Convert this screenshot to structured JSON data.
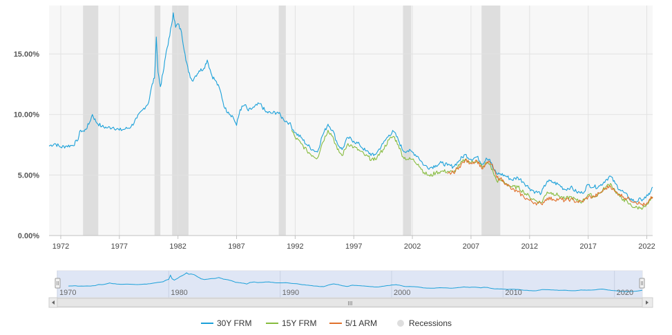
{
  "colors": {
    "frm30": "#1aa0d9",
    "frm15": "#86bb3d",
    "arm51": "#e0702a",
    "recession": "#dedede",
    "plot_bg": "#f7f7f7",
    "grid": "#e2e2e2",
    "navigator_fill": "#d9e2f3"
  },
  "chart_data": {
    "type": "line",
    "title": "",
    "xlabel": "",
    "ylabel": "",
    "xlim": [
      1971.0,
      2022.5
    ],
    "ylim": [
      0,
      19
    ],
    "y_ticks": [
      0,
      5,
      10,
      15
    ],
    "y_tick_labels": [
      "0.00%",
      "5.00%",
      "10.00%",
      "15.00%"
    ],
    "x_ticks": [
      1972,
      1977,
      1982,
      1987,
      1992,
      1997,
      2002,
      2007,
      2012,
      2017,
      2022
    ],
    "x_tick_labels": [
      "1972",
      "1977",
      "1982",
      "1987",
      "1992",
      "1997",
      "2002",
      "2007",
      "2012",
      "2017",
      "2022"
    ],
    "navigator": {
      "xlim": [
        1970,
        2022.5
      ],
      "ticks": [
        1970,
        1980,
        1990,
        2000,
        2010,
        2020
      ],
      "tick_labels": [
        "1970",
        "1980",
        "1990",
        "2000",
        "2010",
        "2020"
      ],
      "scroll_label": "III"
    },
    "recessions": [
      [
        1973.9,
        1975.2
      ],
      [
        1980.0,
        1980.5
      ],
      [
        1981.5,
        1982.9
      ],
      [
        1990.6,
        1991.2
      ],
      [
        2001.2,
        2001.9
      ],
      [
        2007.9,
        2009.5
      ]
    ],
    "series": [
      {
        "name": "30Y FRM",
        "color_key": "frm30",
        "x": [
          1971.0,
          1971.5,
          1972.0,
          1972.5,
          1973.0,
          1973.4,
          1973.7,
          1974.0,
          1974.4,
          1974.7,
          1975.0,
          1975.5,
          1976.0,
          1976.5,
          1977.0,
          1977.5,
          1978.0,
          1978.5,
          1979.0,
          1979.5,
          1979.8,
          1980.0,
          1980.15,
          1980.3,
          1980.5,
          1980.8,
          1981.0,
          1981.3,
          1981.6,
          1981.8,
          1982.0,
          1982.3,
          1982.6,
          1982.9,
          1983.2,
          1983.5,
          1983.8,
          1984.2,
          1984.5,
          1984.9,
          1985.2,
          1985.6,
          1986.0,
          1986.3,
          1986.7,
          1987.0,
          1987.3,
          1987.7,
          1988.0,
          1988.5,
          1989.0,
          1989.5,
          1990.0,
          1990.5,
          1991.0,
          1991.5,
          1992.0,
          1992.5,
          1993.0,
          1993.5,
          1993.9,
          1994.3,
          1994.8,
          1995.2,
          1995.6,
          1996.0,
          1996.5,
          1997.0,
          1997.5,
          1998.0,
          1998.7,
          1999.0,
          1999.5,
          2000.0,
          2000.4,
          2000.8,
          2001.2,
          2001.6,
          2002.0,
          2002.5,
          2003.0,
          2003.5,
          2004.0,
          2004.5,
          2005.0,
          2005.5,
          2006.0,
          2006.5,
          2007.0,
          2007.5,
          2008.0,
          2008.3,
          2008.6,
          2008.9,
          2009.2,
          2009.5,
          2010.0,
          2010.5,
          2011.0,
          2011.5,
          2012.0,
          2012.5,
          2013.0,
          2013.5,
          2014.0,
          2014.5,
          2015.0,
          2015.5,
          2016.0,
          2016.5,
          2017.0,
          2017.5,
          2018.0,
          2018.5,
          2018.9,
          2019.3,
          2019.7,
          2020.0,
          2020.5,
          2021.0,
          2021.5,
          2021.9,
          2022.1,
          2022.3,
          2022.5
        ],
        "y": [
          7.4,
          7.6,
          7.3,
          7.4,
          7.45,
          7.8,
          8.7,
          8.6,
          9.2,
          10.0,
          9.4,
          9.0,
          8.9,
          8.95,
          8.7,
          8.8,
          9.0,
          9.7,
          10.4,
          11.0,
          12.5,
          13.0,
          16.4,
          13.5,
          12.3,
          13.8,
          15.2,
          16.5,
          18.4,
          17.2,
          17.5,
          16.8,
          15.0,
          13.5,
          12.8,
          13.2,
          13.6,
          13.8,
          14.5,
          13.2,
          12.8,
          12.0,
          10.5,
          10.2,
          9.8,
          9.1,
          10.4,
          10.8,
          10.3,
          10.6,
          10.9,
          10.2,
          10.1,
          10.2,
          9.6,
          9.3,
          8.5,
          8.1,
          7.5,
          7.1,
          6.9,
          8.2,
          9.2,
          8.7,
          7.6,
          7.1,
          8.1,
          7.8,
          7.5,
          7.0,
          6.6,
          6.9,
          7.6,
          8.3,
          8.6,
          7.9,
          7.0,
          7.0,
          6.9,
          6.5,
          5.8,
          5.6,
          5.8,
          6.0,
          5.8,
          5.7,
          6.2,
          6.7,
          6.3,
          6.5,
          5.9,
          6.4,
          6.3,
          5.5,
          5.1,
          5.1,
          4.9,
          4.6,
          4.8,
          4.4,
          3.9,
          3.6,
          3.5,
          4.5,
          4.4,
          4.2,
          3.8,
          4.0,
          3.6,
          3.5,
          4.2,
          4.0,
          4.1,
          4.6,
          4.9,
          4.3,
          3.8,
          3.6,
          3.1,
          2.8,
          3.0,
          3.1,
          3.3,
          3.6,
          4.0
        ]
      },
      {
        "name": "15Y FRM",
        "color_key": "frm15",
        "x": [
          1991.7,
          1992.0,
          1992.5,
          1993.0,
          1993.5,
          1993.9,
          1994.3,
          1994.8,
          1995.2,
          1995.6,
          1996.0,
          1996.5,
          1997.0,
          1997.5,
          1998.0,
          1998.7,
          1999.0,
          1999.5,
          2000.0,
          2000.4,
          2000.8,
          2001.2,
          2001.6,
          2002.0,
          2002.5,
          2003.0,
          2003.5,
          2004.0,
          2004.5,
          2005.0,
          2005.5,
          2006.0,
          2006.5,
          2007.0,
          2007.5,
          2008.0,
          2008.3,
          2008.6,
          2008.9,
          2009.2,
          2009.5,
          2010.0,
          2010.5,
          2011.0,
          2011.5,
          2012.0,
          2012.5,
          2013.0,
          2013.5,
          2014.0,
          2014.5,
          2015.0,
          2015.5,
          2016.0,
          2016.5,
          2017.0,
          2017.5,
          2018.0,
          2018.5,
          2018.9,
          2019.3,
          2019.7,
          2020.0,
          2020.5,
          2021.0,
          2021.5,
          2021.9,
          2022.1,
          2022.3,
          2022.5
        ],
        "y": [
          8.7,
          8.1,
          7.6,
          7.0,
          6.6,
          6.4,
          7.6,
          8.7,
          8.2,
          7.1,
          6.6,
          7.6,
          7.3,
          7.0,
          6.6,
          6.2,
          6.5,
          7.1,
          7.9,
          8.2,
          7.5,
          6.5,
          6.3,
          6.3,
          5.9,
          5.2,
          4.9,
          5.2,
          5.3,
          5.3,
          5.2,
          5.8,
          6.3,
          6.0,
          6.2,
          5.6,
          6.0,
          5.9,
          5.2,
          4.5,
          4.6,
          4.3,
          4.0,
          4.0,
          3.6,
          3.2,
          2.9,
          2.7,
          3.6,
          3.5,
          3.3,
          3.0,
          3.2,
          2.9,
          2.8,
          3.4,
          3.2,
          3.5,
          4.0,
          4.3,
          3.7,
          3.2,
          3.0,
          2.6,
          2.3,
          2.3,
          2.4,
          2.6,
          2.9,
          3.1
        ]
      },
      {
        "name": "5/1 ARM",
        "color_key": "arm51",
        "x": [
          2005.0,
          2005.5,
          2006.0,
          2006.5,
          2007.0,
          2007.5,
          2008.0,
          2008.3,
          2008.6,
          2008.9,
          2009.2,
          2009.5,
          2010.0,
          2010.5,
          2011.0,
          2011.5,
          2012.0,
          2012.5,
          2013.0,
          2013.5,
          2014.0,
          2014.5,
          2015.0,
          2015.5,
          2016.0,
          2016.5,
          2017.0,
          2017.5,
          2018.0,
          2018.5,
          2018.9,
          2019.3,
          2019.7,
          2020.0,
          2020.5,
          2021.0,
          2021.5,
          2021.9,
          2022.1,
          2022.3,
          2022.5
        ],
        "y": [
          5.1,
          5.2,
          5.7,
          6.2,
          6.0,
          6.2,
          5.5,
          5.9,
          6.1,
          5.6,
          4.8,
          4.7,
          4.3,
          3.8,
          3.6,
          3.2,
          2.9,
          2.7,
          2.6,
          3.1,
          3.0,
          3.0,
          2.9,
          3.0,
          2.8,
          2.8,
          3.2,
          3.2,
          3.5,
          3.9,
          4.1,
          3.6,
          3.4,
          3.2,
          3.0,
          2.8,
          2.6,
          2.5,
          2.7,
          3.0,
          3.2
        ]
      }
    ],
    "legend": {
      "position": "bottom-center",
      "items": [
        {
          "label": "30Y FRM",
          "type": "line",
          "color_key": "frm30"
        },
        {
          "label": "15Y FRM",
          "type": "line",
          "color_key": "frm15"
        },
        {
          "label": "5/1 ARM",
          "type": "line",
          "color_key": "arm51"
        },
        {
          "label": "Recessions",
          "type": "dot",
          "color_key": "recession"
        }
      ]
    }
  }
}
